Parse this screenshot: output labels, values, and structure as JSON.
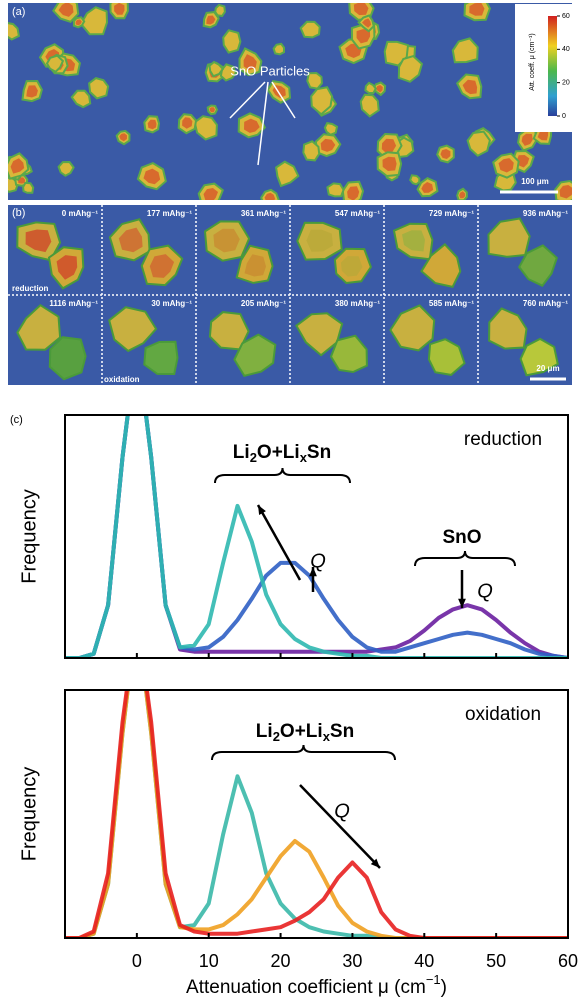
{
  "figure": {
    "panel_a": {
      "label": "(a)",
      "annotation": "SnO Particles",
      "scale_bar": "100 μm",
      "colorbar": {
        "title": "Att. coeff. μ (cm⁻¹)",
        "ticks": [
          0,
          20,
          40,
          60
        ]
      }
    },
    "panel_b": {
      "label": "(b)",
      "frames": [
        "0 mAhg⁻¹",
        "177 mAhg⁻¹",
        "361 mAhg⁻¹",
        "547 mAhg⁻¹",
        "729 mAhg⁻¹",
        "936 mAhg⁻¹",
        "1116 mAhg⁻¹",
        "30 mAhg⁻¹",
        "205 mAhg⁻¹",
        "380 mAhg⁻¹",
        "585 mAhg⁻¹",
        "760 mAhg⁻¹"
      ],
      "reduction": "reduction",
      "oxidation": "oxidation",
      "scale_bar": "20 μm"
    },
    "panel_c_label": "(c)"
  },
  "chart_data": [
    {
      "type": "line",
      "annotation": "reduction",
      "phase_label": [
        "Li",
        "2",
        "O+Li",
        "x",
        "Sn"
      ],
      "phase_label_2": "SnO",
      "q_label": "Q",
      "y_label": "Frequency",
      "xlim": [
        -10,
        60
      ],
      "ylim": [
        0,
        115
      ],
      "x": [
        -10,
        -8,
        -6,
        -4,
        -2,
        0,
        2,
        4,
        6,
        8,
        10,
        12,
        14,
        16,
        18,
        20,
        22,
        24,
        26,
        28,
        30,
        32,
        34,
        36,
        38,
        40,
        42,
        44,
        46,
        48,
        50,
        52,
        54,
        56,
        58,
        60
      ],
      "series": [
        {
          "color": "#6a1fa0",
          "values": [
            0,
            0,
            2,
            25,
            95,
            150,
            95,
            25,
            4,
            3,
            3,
            3,
            3,
            3,
            3,
            3,
            3,
            3,
            3,
            3,
            3,
            3,
            4,
            5,
            8,
            13,
            19,
            23,
            25,
            23,
            18,
            12,
            7,
            3,
            1,
            0
          ]
        },
        {
          "color": "#2f5fc4",
          "values": [
            0,
            0,
            2,
            25,
            95,
            150,
            95,
            25,
            5,
            4,
            5,
            10,
            18,
            28,
            39,
            45,
            45,
            39,
            28,
            18,
            10,
            5,
            3,
            3,
            5,
            7,
            9,
            11,
            12,
            11,
            9,
            7,
            4,
            2,
            1,
            0
          ]
        },
        {
          "color": "#2fb8b0",
          "values": [
            0,
            0,
            2,
            25,
            95,
            150,
            95,
            25,
            5,
            6,
            16,
            45,
            72,
            55,
            30,
            16,
            9,
            5,
            3,
            2,
            1,
            1,
            0,
            0,
            0,
            0,
            0,
            0,
            0,
            0,
            0,
            0,
            0,
            0,
            0,
            0
          ]
        }
      ]
    },
    {
      "type": "line",
      "annotation": "oxidation",
      "phase_label": [
        "Li",
        "2",
        "O+Li",
        "x",
        "Sn"
      ],
      "q_label": "Q",
      "y_label": "Frequency",
      "x_label": [
        "Attenuation coefficient μ (cm",
        "−1",
        ")"
      ],
      "xlim": [
        -10,
        60
      ],
      "ylim": [
        0,
        115
      ],
      "xticks": [
        0,
        10,
        20,
        30,
        40,
        50,
        60
      ],
      "x": [
        -10,
        -8,
        -6,
        -4,
        -2,
        0,
        2,
        4,
        6,
        8,
        10,
        12,
        14,
        16,
        18,
        20,
        22,
        24,
        26,
        28,
        30,
        32,
        34,
        36,
        38,
        40,
        42,
        44,
        46,
        48,
        50,
        52,
        54,
        56,
        58,
        60
      ],
      "series": [
        {
          "color": "#3ab8a8",
          "values": [
            0,
            0,
            2,
            25,
            95,
            150,
            95,
            25,
            5,
            6,
            16,
            48,
            75,
            58,
            30,
            16,
            9,
            5,
            3,
            2,
            1,
            1,
            0,
            0,
            0,
            0,
            0,
            0,
            0,
            0,
            0,
            0,
            0,
            0,
            0,
            0
          ]
        },
        {
          "color": "#f0a020",
          "values": [
            0,
            0,
            2,
            25,
            95,
            150,
            95,
            25,
            5,
            4,
            4,
            6,
            11,
            18,
            28,
            38,
            45,
            40,
            28,
            15,
            7,
            3,
            1,
            0,
            0,
            0,
            0,
            0,
            0,
            0,
            0,
            0,
            0,
            0,
            0,
            0
          ]
        },
        {
          "color": "#e82020",
          "values": [
            0,
            0,
            3,
            30,
            100,
            150,
            100,
            30,
            6,
            3,
            2,
            2,
            2,
            3,
            4,
            5,
            8,
            12,
            18,
            28,
            35,
            28,
            12,
            4,
            1,
            0,
            0,
            0,
            0,
            0,
            0,
            0,
            0,
            0,
            0,
            0
          ]
        }
      ]
    }
  ]
}
